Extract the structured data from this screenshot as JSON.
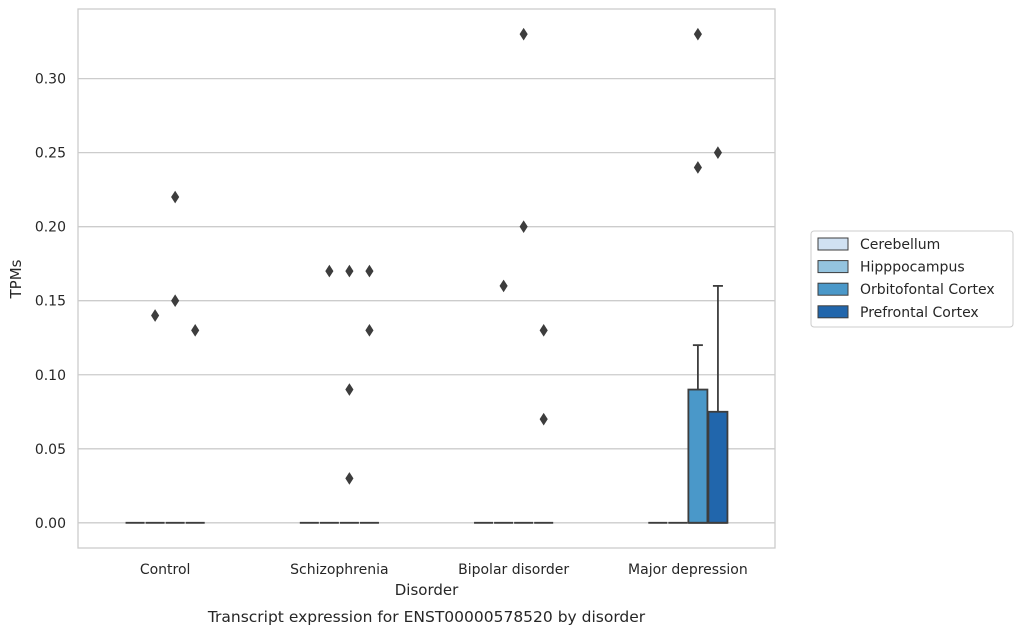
{
  "chart_data": {
    "type": "box",
    "title": "",
    "caption": "Transcript expression for ENST00000578520 by disorder",
    "xlabel": "Disorder",
    "ylabel": "TPMs",
    "categories": [
      "Control",
      "Schizophrenia",
      "Bipolar disorder",
      "Major depression"
    ],
    "ylim": [
      -0.017,
      0.347
    ],
    "yticks": [
      0.0,
      0.05,
      0.1,
      0.15,
      0.2,
      0.25,
      0.3
    ],
    "ytick_labels": [
      "0.00",
      "0.05",
      "0.10",
      "0.15",
      "0.20",
      "0.25",
      "0.30"
    ],
    "grid": "horizontal",
    "legend_position": "right",
    "series": [
      {
        "name": "Cerebellum",
        "color": "#d0e1f2",
        "boxes": [
          {
            "category": "Control",
            "q1": 0,
            "median": 0,
            "q3": 0,
            "whisker_high": 0,
            "outliers": []
          },
          {
            "category": "Schizophrenia",
            "q1": 0,
            "median": 0,
            "q3": 0,
            "whisker_high": 0,
            "outliers": []
          },
          {
            "category": "Bipolar disorder",
            "q1": 0,
            "median": 0,
            "q3": 0,
            "whisker_high": 0,
            "outliers": []
          },
          {
            "category": "Major depression",
            "q1": 0,
            "median": 0,
            "q3": 0,
            "whisker_high": 0,
            "outliers": []
          }
        ]
      },
      {
        "name": "Hipppocampus",
        "color": "#94c4df",
        "boxes": [
          {
            "category": "Control",
            "q1": 0,
            "median": 0,
            "q3": 0,
            "whisker_high": 0,
            "outliers": [
              0.14
            ]
          },
          {
            "category": "Schizophrenia",
            "q1": 0,
            "median": 0,
            "q3": 0,
            "whisker_high": 0,
            "outliers": [
              0.17
            ]
          },
          {
            "category": "Bipolar disorder",
            "q1": 0,
            "median": 0,
            "q3": 0,
            "whisker_high": 0,
            "outliers": [
              0.16
            ]
          },
          {
            "category": "Major depression",
            "q1": 0,
            "median": 0,
            "q3": 0,
            "whisker_high": 0,
            "outliers": []
          }
        ]
      },
      {
        "name": "Orbitofontal Cortex",
        "color": "#4a98c9",
        "boxes": [
          {
            "category": "Control",
            "q1": 0,
            "median": 0,
            "q3": 0,
            "whisker_high": 0,
            "outliers": [
              0.15,
              0.22
            ]
          },
          {
            "category": "Schizophrenia",
            "q1": 0,
            "median": 0,
            "q3": 0,
            "whisker_high": 0,
            "outliers": [
              0.03,
              0.09,
              0.17
            ]
          },
          {
            "category": "Bipolar disorder",
            "q1": 0,
            "median": 0,
            "q3": 0,
            "whisker_high": 0,
            "outliers": [
              0.2,
              0.33
            ]
          },
          {
            "category": "Major depression",
            "q1": 0,
            "median": 0,
            "q3": 0.09,
            "whisker_high": 0.12,
            "outliers": [
              0.24,
              0.33
            ]
          }
        ]
      },
      {
        "name": "Prefrontal Cortex",
        "color": "#2166ac",
        "boxes": [
          {
            "category": "Control",
            "q1": 0,
            "median": 0,
            "q3": 0,
            "whisker_high": 0,
            "outliers": [
              0.13
            ]
          },
          {
            "category": "Schizophrenia",
            "q1": 0,
            "median": 0,
            "q3": 0,
            "whisker_high": 0,
            "outliers": [
              0.13,
              0.17
            ]
          },
          {
            "category": "Bipolar disorder",
            "q1": 0,
            "median": 0,
            "q3": 0,
            "whisker_high": 0,
            "outliers": [
              0.07,
              0.13
            ]
          },
          {
            "category": "Major depression",
            "q1": 0,
            "median": 0,
            "q3": 0.075,
            "whisker_high": 0.16,
            "outliers": [
              0.25
            ]
          }
        ]
      }
    ]
  }
}
